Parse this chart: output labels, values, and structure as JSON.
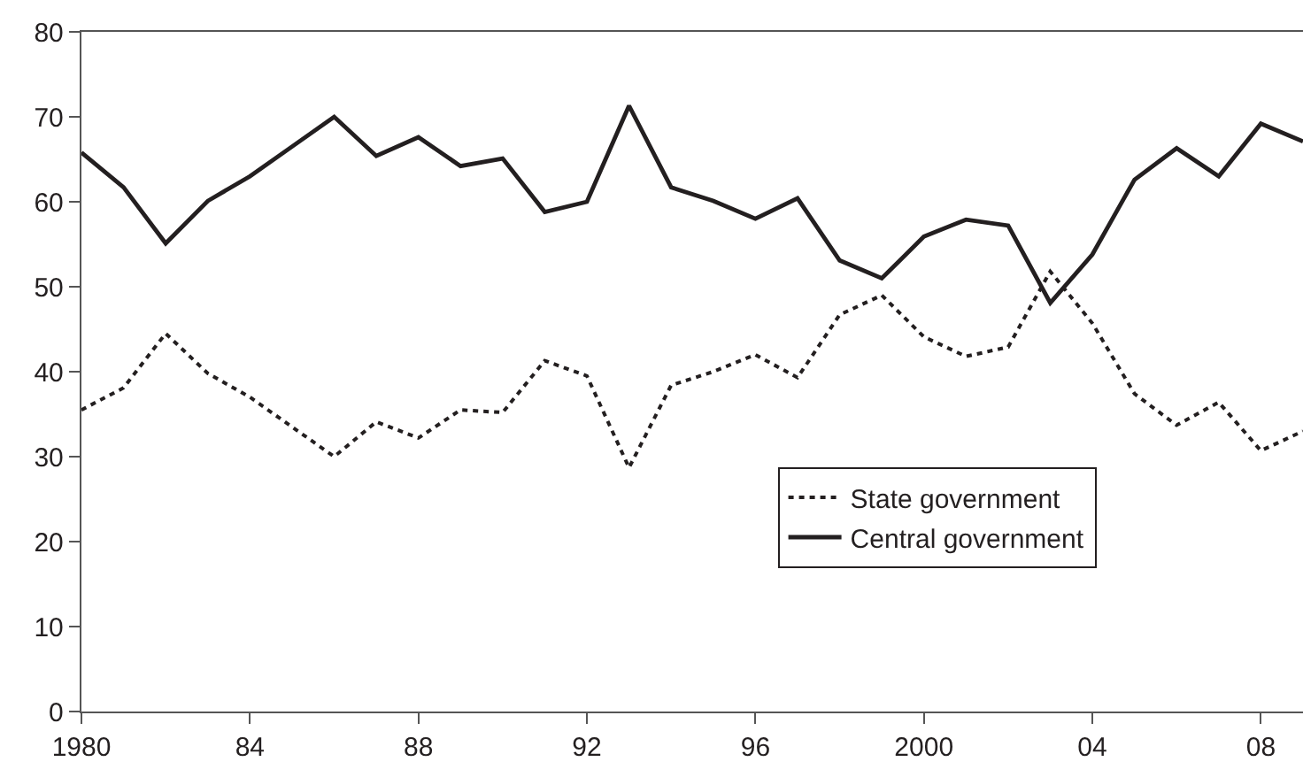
{
  "chart_data": {
    "type": "line",
    "x": [
      1980,
      1981,
      1982,
      1983,
      1984,
      1985,
      1986,
      1987,
      1988,
      1989,
      1990,
      1991,
      1992,
      1993,
      1994,
      1995,
      1996,
      1997,
      1998,
      1999,
      2000,
      2001,
      2002,
      2003,
      2004,
      2005,
      2006,
      2007,
      2008,
      2009
    ],
    "series": [
      {
        "name": "State government",
        "color": "#231f20",
        "line_style": "dotted",
        "values": [
          35.5,
          38.1,
          44.5,
          39.8,
          37,
          33.5,
          30,
          34.1,
          32.2,
          35.5,
          35.2,
          41.3,
          39.5,
          28.7,
          38.4,
          40,
          42,
          39.3,
          46.7,
          49,
          44.1,
          41.8,
          42.9,
          51.8,
          45.7,
          37.4,
          33.7,
          36.4,
          30.7,
          33
        ]
      },
      {
        "name": "Central government",
        "color": "#231f20",
        "line_style": "solid",
        "values": [
          65.8,
          61.7,
          55.1,
          60.1,
          63,
          66.5,
          70,
          65.4,
          67.6,
          64.2,
          65.1,
          58.8,
          60,
          71.3,
          61.7,
          60.1,
          58,
          60.4,
          53.1,
          51,
          55.9,
          57.9,
          57.2,
          48.1,
          53.8,
          62.6,
          66.3,
          63,
          69.2,
          67.1
        ]
      }
    ],
    "xlim": [
      1980,
      2009
    ],
    "xticks": [
      1980,
      {
        "value": 1984,
        "label": "84"
      },
      {
        "value": 1988,
        "label": "88"
      },
      {
        "value": 1992,
        "label": "92"
      },
      {
        "value": 1996,
        "label": "96"
      },
      2000,
      {
        "value": 2004,
        "label": "04"
      },
      {
        "value": 2008,
        "label": "08"
      }
    ],
    "ylim": [
      0,
      80
    ],
    "yticks": [
      0,
      10,
      20,
      30,
      40,
      50,
      60,
      70,
      80
    ],
    "grid": false,
    "legend": "bottom right",
    "marker": "none"
  }
}
